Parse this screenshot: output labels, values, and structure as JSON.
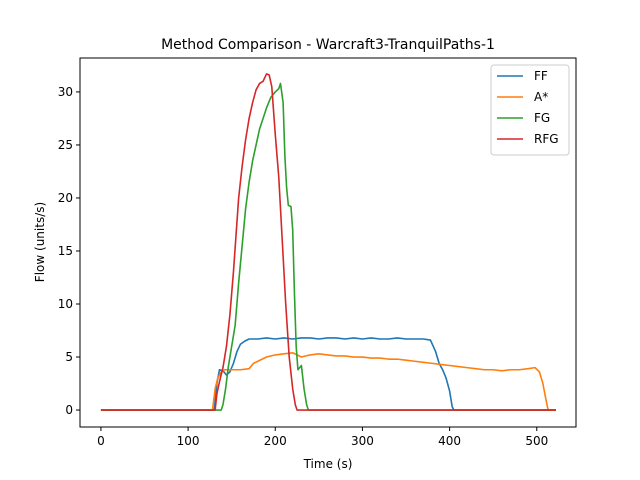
{
  "chart_data": {
    "type": "line",
    "title": "Method Comparison - Warcraft3-TranquilPaths-1",
    "xlabel": "Time (s)",
    "ylabel": "Flow (units/s)",
    "xlim": [
      -24,
      545
    ],
    "ylim": [
      -1.6,
      33.2
    ],
    "xticks": [
      0,
      100,
      200,
      300,
      400,
      500
    ],
    "yticks": [
      0,
      5,
      10,
      15,
      20,
      25,
      30
    ],
    "grid": false,
    "legend_position": "top-right",
    "series": [
      {
        "name": "FF",
        "color": "#1f77b4",
        "points": [
          [
            0,
            0
          ],
          [
            100,
            0
          ],
          [
            130,
            0
          ],
          [
            133,
            2.5
          ],
          [
            136,
            3.8
          ],
          [
            140,
            3.7
          ],
          [
            144,
            3.3
          ],
          [
            148,
            3.6
          ],
          [
            152,
            4.4
          ],
          [
            156,
            5.5
          ],
          [
            160,
            6.2
          ],
          [
            165,
            6.5
          ],
          [
            170,
            6.7
          ],
          [
            180,
            6.7
          ],
          [
            190,
            6.8
          ],
          [
            200,
            6.7
          ],
          [
            210,
            6.8
          ],
          [
            220,
            6.7
          ],
          [
            230,
            6.8
          ],
          [
            240,
            6.8
          ],
          [
            250,
            6.7
          ],
          [
            260,
            6.8
          ],
          [
            270,
            6.8
          ],
          [
            280,
            6.7
          ],
          [
            290,
            6.8
          ],
          [
            300,
            6.7
          ],
          [
            310,
            6.8
          ],
          [
            320,
            6.7
          ],
          [
            330,
            6.7
          ],
          [
            340,
            6.8
          ],
          [
            350,
            6.7
          ],
          [
            360,
            6.7
          ],
          [
            370,
            6.7
          ],
          [
            378,
            6.6
          ],
          [
            384,
            5.5
          ],
          [
            388,
            4.4
          ],
          [
            392,
            3.8
          ],
          [
            396,
            3.0
          ],
          [
            400,
            1.8
          ],
          [
            403,
            0.3
          ],
          [
            405,
            0
          ],
          [
            450,
            0
          ],
          [
            522,
            0
          ]
        ]
      },
      {
        "name": "A*",
        "color": "#ff7f0e",
        "points": [
          [
            0,
            0
          ],
          [
            100,
            0
          ],
          [
            128,
            0
          ],
          [
            131,
            2.0
          ],
          [
            134,
            3.0
          ],
          [
            138,
            3.6
          ],
          [
            142,
            3.8
          ],
          [
            150,
            3.8
          ],
          [
            160,
            3.8
          ],
          [
            170,
            3.9
          ],
          [
            175,
            4.4
          ],
          [
            180,
            4.6
          ],
          [
            190,
            5.0
          ],
          [
            200,
            5.2
          ],
          [
            210,
            5.3
          ],
          [
            220,
            5.4
          ],
          [
            230,
            5.0
          ],
          [
            240,
            5.2
          ],
          [
            250,
            5.3
          ],
          [
            260,
            5.2
          ],
          [
            270,
            5.1
          ],
          [
            280,
            5.1
          ],
          [
            290,
            5.0
          ],
          [
            300,
            5.0
          ],
          [
            310,
            4.9
          ],
          [
            320,
            4.9
          ],
          [
            330,
            4.8
          ],
          [
            340,
            4.8
          ],
          [
            350,
            4.7
          ],
          [
            360,
            4.6
          ],
          [
            370,
            4.5
          ],
          [
            380,
            4.4
          ],
          [
            390,
            4.3
          ],
          [
            400,
            4.2
          ],
          [
            410,
            4.1
          ],
          [
            420,
            4.0
          ],
          [
            430,
            3.9
          ],
          [
            440,
            3.8
          ],
          [
            450,
            3.8
          ],
          [
            460,
            3.7
          ],
          [
            470,
            3.8
          ],
          [
            480,
            3.8
          ],
          [
            490,
            3.9
          ],
          [
            498,
            4.0
          ],
          [
            503,
            3.6
          ],
          [
            507,
            2.5
          ],
          [
            510,
            1.2
          ],
          [
            513,
            0
          ],
          [
            522,
            0
          ]
        ]
      },
      {
        "name": "FG",
        "color": "#2ca02c",
        "points": [
          [
            0,
            0
          ],
          [
            100,
            0
          ],
          [
            138,
            0
          ],
          [
            140,
            0.5
          ],
          [
            143,
            2.0
          ],
          [
            146,
            4.0
          ],
          [
            150,
            6.0
          ],
          [
            154,
            8.0
          ],
          [
            158,
            12.0
          ],
          [
            162,
            15.5
          ],
          [
            166,
            19.0
          ],
          [
            170,
            21.5
          ],
          [
            174,
            23.5
          ],
          [
            178,
            25.0
          ],
          [
            182,
            26.5
          ],
          [
            186,
            27.5
          ],
          [
            190,
            28.5
          ],
          [
            195,
            29.5
          ],
          [
            200,
            30.0
          ],
          [
            204,
            30.3
          ],
          [
            206,
            30.8
          ],
          [
            209,
            29.0
          ],
          [
            211,
            24.0
          ],
          [
            213,
            21.0
          ],
          [
            215,
            19.3
          ],
          [
            218,
            19.2
          ],
          [
            220,
            17.0
          ],
          [
            222,
            11.0
          ],
          [
            224,
            6.0
          ],
          [
            226,
            3.8
          ],
          [
            228,
            4.0
          ],
          [
            230,
            4.2
          ],
          [
            233,
            2.0
          ],
          [
            236,
            0.5
          ],
          [
            238,
            0
          ],
          [
            300,
            0
          ],
          [
            522,
            0
          ]
        ]
      },
      {
        "name": "RFG",
        "color": "#d62728",
        "points": [
          [
            0,
            0
          ],
          [
            100,
            0
          ],
          [
            131,
            0
          ],
          [
            133,
            1.5
          ],
          [
            135,
            2.3
          ],
          [
            137,
            3.0
          ],
          [
            140,
            4.0
          ],
          [
            144,
            6.0
          ],
          [
            148,
            9.0
          ],
          [
            152,
            13.0
          ],
          [
            155,
            16.5
          ],
          [
            158,
            20.0
          ],
          [
            162,
            23.0
          ],
          [
            166,
            25.5
          ],
          [
            170,
            27.5
          ],
          [
            174,
            29.0
          ],
          [
            178,
            30.2
          ],
          [
            182,
            30.8
          ],
          [
            186,
            31.0
          ],
          [
            190,
            31.7
          ],
          [
            193,
            31.6
          ],
          [
            196,
            30.5
          ],
          [
            200,
            26.0
          ],
          [
            204,
            22.0
          ],
          [
            208,
            16.0
          ],
          [
            212,
            10.0
          ],
          [
            216,
            5.0
          ],
          [
            220,
            2.0
          ],
          [
            223,
            0.5
          ],
          [
            225,
            0
          ],
          [
            300,
            0
          ],
          [
            522,
            0
          ]
        ]
      }
    ]
  }
}
